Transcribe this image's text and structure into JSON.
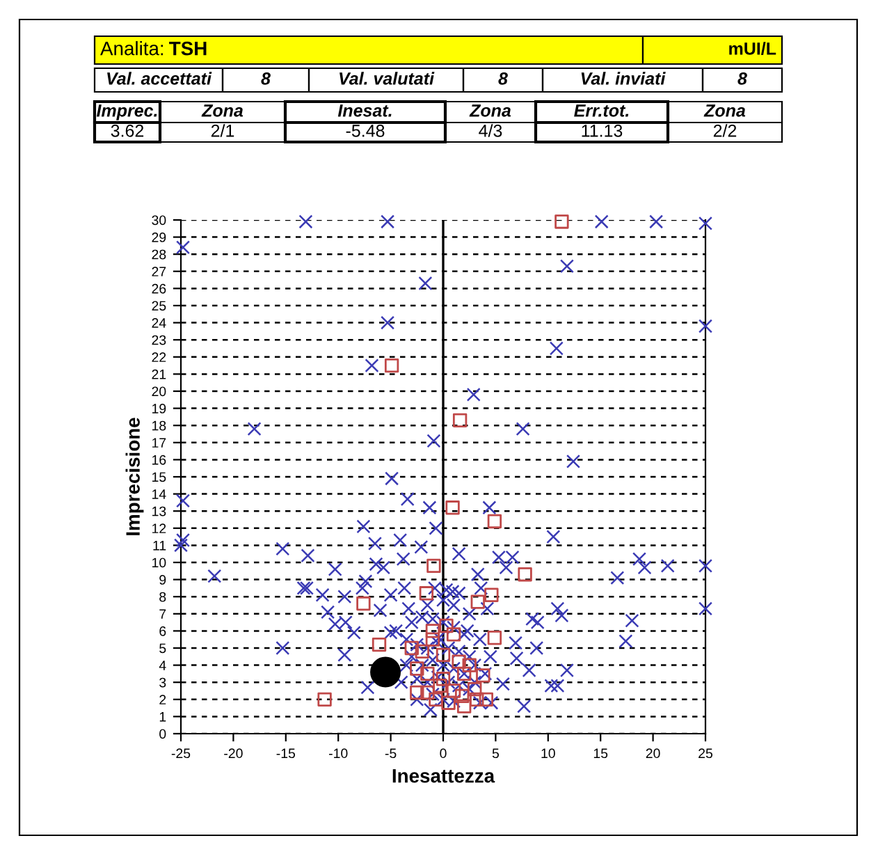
{
  "chart_data": {
    "type": "scatter",
    "xlabel": "Inesattezza",
    "ylabel": "Imprecisione",
    "xlim": [
      -25,
      25
    ],
    "ylim": [
      0,
      30
    ],
    "xticks": [
      -25,
      -20,
      -15,
      -10,
      -5,
      0,
      5,
      10,
      15,
      20,
      25
    ],
    "yticks": [
      0,
      1,
      2,
      3,
      4,
      5,
      6,
      7,
      8,
      9,
      10,
      11,
      12,
      13,
      14,
      15,
      16,
      17,
      18,
      19,
      20,
      21,
      22,
      23,
      24,
      25,
      26,
      27,
      28,
      29,
      30
    ],
    "grid": "y",
    "ref_lines": [
      {
        "axis": "x",
        "value": 0,
        "color": "#000000",
        "line_style": "solid"
      }
    ],
    "annotations": [
      "Analita:",
      "TSH",
      "mUI/L",
      "Val. accettati",
      "8",
      "Val. valutati",
      "8",
      "Val. inviati",
      "8",
      "Imprec.",
      "Zona",
      "Inesat.",
      "Zona",
      "Err.tot.",
      "Zona",
      "3.62",
      "2/1",
      "-5.48",
      "4/3",
      "11.13",
      "2/2"
    ],
    "series": [
      {
        "color": "#3a3ab4",
        "marker": "cross",
        "x": [
          -13.1,
          -5.3,
          -24.8,
          -1.7,
          -5.3,
          -6.8,
          -18.0,
          -0.9,
          -4.9,
          2.9,
          15.1,
          20.3,
          25,
          11.8,
          25,
          10.8,
          7.6,
          12.4,
          -3.4,
          -24.8,
          -24.8,
          -25,
          -1.3,
          -0.7,
          -7.6,
          -15.3,
          -12.9,
          -21.8,
          -10.3,
          -6.5,
          -4.1,
          -2.1,
          -3.8,
          -6.4,
          -5.7,
          -13.3,
          -13.0,
          -11.5,
          -9.4,
          -7.4,
          -7.7,
          -11.0,
          -10.3,
          -9.3,
          -8.5,
          -15.3,
          -9.4,
          -7.2,
          -6.0,
          -5.0,
          -3.7,
          -3.3,
          -5.0,
          -1.2,
          4.4,
          10.5,
          1.5,
          5.3,
          6.6,
          6.0,
          18.7,
          19.2,
          21.4,
          16.6,
          25,
          3.3,
          0.9,
          10.9,
          11.3,
          8.5,
          9.0,
          18.0,
          25,
          17.4,
          6.9,
          8.9,
          7.0,
          8.2,
          11.8,
          5.7,
          10.3,
          10.9,
          7.7,
          4.6,
          -0.4,
          4.2,
          2.3,
          3.6,
          -3,
          -2,
          -1,
          0,
          1,
          2,
          -3.5,
          -2.5,
          -1.5,
          -0.5,
          0.5,
          1.5,
          2.5,
          3,
          -3,
          -2,
          -1,
          0,
          1,
          2,
          -2.5,
          -1.5,
          -0.5,
          0.5,
          1.5,
          2.5,
          -1,
          0,
          1,
          3,
          4,
          4.5,
          3.5,
          -4,
          -3.5,
          -1.5,
          0,
          1,
          2.5,
          -4.5,
          -0.8,
          0.3,
          1.5,
          -2.5,
          3.5
        ],
        "values": [
          29.9,
          29.9,
          28.4,
          26.3,
          24.0,
          21.5,
          17.8,
          17.1,
          14.9,
          19.8,
          29.9,
          29.9,
          29.8,
          27.3,
          23.8,
          22.5,
          17.8,
          15.9,
          13.7,
          13.6,
          11.3,
          11.0,
          13.2,
          12.0,
          12.1,
          10.8,
          10.4,
          9.2,
          9.6,
          11.1,
          11.3,
          10.9,
          10.2,
          9.9,
          9.7,
          8.5,
          8.5,
          8.1,
          8.0,
          8.9,
          8.5,
          7.1,
          6.4,
          6.5,
          5.9,
          5.0,
          4.6,
          2.7,
          7.2,
          8.1,
          8.5,
          7.3,
          5.9,
          1.4,
          13.2,
          11.5,
          10.5,
          10.3,
          10.3,
          9.7,
          10.2,
          9.7,
          9.8,
          9.1,
          9.8,
          9.3,
          8.3,
          7.3,
          6.9,
          6.7,
          6.5,
          6.6,
          7.3,
          5.4,
          5.3,
          5.0,
          4.4,
          3.7,
          3.7,
          2.9,
          2.8,
          2.8,
          1.6,
          1.8,
          5.6,
          7.3,
          6.0,
          8.5,
          6.5,
          6.8,
          6.7,
          6.5,
          6.2,
          5.8,
          5.5,
          5.2,
          5.0,
          5.3,
          5.0,
          4.8,
          4.5,
          4.0,
          4.5,
          4.0,
          4.3,
          4.0,
          3.8,
          3.5,
          3.2,
          3.0,
          3.3,
          3.0,
          2.8,
          2.6,
          2.3,
          2.0,
          1.9,
          3.0,
          3.5,
          4.5,
          5.5,
          3.0,
          4.0,
          7.5,
          7.8,
          7.5,
          7.0,
          6.0,
          8.5,
          8.4,
          8.2,
          2.0,
          1.8
        ]
      },
      {
        "color": "#c04848",
        "marker": "square",
        "x": [
          -4.9,
          1.6,
          11.3,
          0.9,
          -0.9,
          -7.6,
          -1.6,
          -6.1,
          -11.3,
          -2.5,
          -1.5,
          4.9,
          7.8,
          3.3,
          4.6,
          4.9,
          2.0,
          4.1,
          3.2,
          -0.7,
          -2,
          -1,
          0,
          1,
          -1.5,
          0,
          1,
          2,
          3,
          0.5,
          -2.5,
          1.5,
          -3,
          -1,
          0.3,
          2.5,
          -0.3,
          1.8,
          3.8
        ],
        "values": [
          21.5,
          18.3,
          29.9,
          13.2,
          9.8,
          7.6,
          8.2,
          5.2,
          2.0,
          2.4,
          2.4,
          12.4,
          9.3,
          7.7,
          8.1,
          5.6,
          1.6,
          2.0,
          2.0,
          2.0,
          4.8,
          5.5,
          4.6,
          5.8,
          3.5,
          3.2,
          2.5,
          3.5,
          2.6,
          1.8,
          3.8,
          4.2,
          5.0,
          6.0,
          6.3,
          4.0,
          2.8,
          2.2,
          3.4
        ]
      },
      {
        "color": "#000000",
        "marker": "circle",
        "x": [
          -5.5
        ],
        "values": [
          3.6
        ]
      }
    ]
  }
}
